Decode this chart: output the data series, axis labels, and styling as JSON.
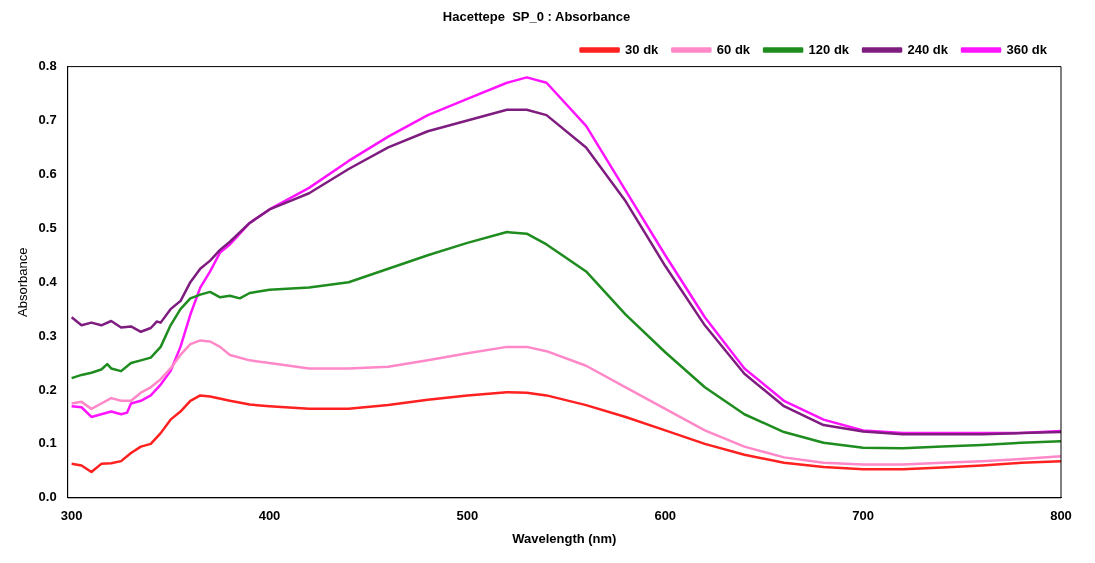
{
  "chart_data": {
    "type": "line",
    "title": "Hacettepe  SP_0 : Absorbance",
    "xlabel": "Wavelength (nm)",
    "ylabel": "Absorbance",
    "xlim": [
      298,
      800
    ],
    "xticks": [
      300,
      400,
      500,
      600,
      700,
      800
    ],
    "ylim": [
      0,
      0.8
    ],
    "yticks": [
      {
        "value": 0,
        "label": "0.0"
      },
      0.1,
      0.2,
      0.3,
      0.4,
      0.5,
      0.6,
      0.7,
      0.8
    ],
    "grid": false,
    "legend": "top right",
    "marker": "none",
    "line_style": "solid",
    "series": [
      {
        "name": "30 dk",
        "color": "#ff2020",
        "x": [
          300,
          305,
          310,
          315,
          320,
          325,
          330,
          335,
          340,
          345,
          350,
          355,
          360,
          365,
          370,
          380,
          390,
          400,
          420,
          440,
          460,
          480,
          500,
          520,
          530,
          540,
          560,
          580,
          600,
          620,
          640,
          660,
          680,
          700,
          720,
          740,
          760,
          780,
          800
        ],
        "values": [
          0.063,
          0.06,
          0.048,
          0.063,
          0.064,
          0.068,
          0.083,
          0.095,
          0.1,
          0.12,
          0.145,
          0.16,
          0.18,
          0.19,
          0.188,
          0.18,
          0.173,
          0.17,
          0.165,
          0.165,
          0.172,
          0.182,
          0.19,
          0.196,
          0.195,
          0.19,
          0.172,
          0.15,
          0.125,
          0.1,
          0.08,
          0.065,
          0.057,
          0.053,
          0.053,
          0.056,
          0.06,
          0.065,
          0.068
        ]
      },
      {
        "name": "60 dk",
        "color": "#ff88c8",
        "x": [
          300,
          305,
          310,
          315,
          320,
          325,
          330,
          335,
          340,
          345,
          350,
          355,
          360,
          365,
          370,
          375,
          380,
          390,
          400,
          420,
          440,
          460,
          480,
          500,
          520,
          530,
          540,
          560,
          580,
          600,
          620,
          640,
          660,
          680,
          700,
          720,
          740,
          760,
          780,
          800
        ],
        "values": [
          0.175,
          0.178,
          0.165,
          0.175,
          0.185,
          0.18,
          0.18,
          0.195,
          0.205,
          0.22,
          0.24,
          0.265,
          0.285,
          0.292,
          0.29,
          0.28,
          0.265,
          0.255,
          0.25,
          0.24,
          0.24,
          0.243,
          0.255,
          0.268,
          0.28,
          0.28,
          0.272,
          0.245,
          0.205,
          0.165,
          0.125,
          0.095,
          0.075,
          0.065,
          0.062,
          0.062,
          0.065,
          0.068,
          0.072,
          0.077
        ]
      },
      {
        "name": "120 dk",
        "color": "#1e8c1e",
        "x": [
          300,
          305,
          310,
          315,
          318,
          320,
          325,
          330,
          335,
          340,
          345,
          350,
          355,
          360,
          365,
          370,
          375,
          380,
          385,
          390,
          400,
          420,
          440,
          460,
          480,
          500,
          520,
          530,
          540,
          560,
          580,
          600,
          620,
          640,
          660,
          680,
          700,
          720,
          740,
          760,
          780,
          800
        ],
        "values": [
          0.222,
          0.228,
          0.232,
          0.238,
          0.248,
          0.24,
          0.235,
          0.25,
          0.255,
          0.26,
          0.28,
          0.32,
          0.35,
          0.37,
          0.377,
          0.382,
          0.372,
          0.375,
          0.37,
          0.38,
          0.386,
          0.39,
          0.4,
          0.425,
          0.45,
          0.473,
          0.493,
          0.49,
          0.47,
          0.42,
          0.34,
          0.27,
          0.205,
          0.155,
          0.122,
          0.102,
          0.093,
          0.092,
          0.095,
          0.098,
          0.102,
          0.105
        ]
      },
      {
        "name": "240 dk",
        "color": "#7f1c7f",
        "x": [
          300,
          305,
          310,
          315,
          320,
          325,
          330,
          335,
          340,
          343,
          345,
          350,
          355,
          360,
          365,
          370,
          375,
          380,
          390,
          400,
          410,
          420,
          440,
          460,
          480,
          500,
          520,
          530,
          540,
          560,
          580,
          600,
          620,
          640,
          660,
          680,
          700,
          720,
          740,
          760,
          780,
          800
        ],
        "values": [
          0.335,
          0.32,
          0.325,
          0.32,
          0.328,
          0.316,
          0.318,
          0.308,
          0.315,
          0.327,
          0.325,
          0.35,
          0.365,
          0.4,
          0.425,
          0.44,
          0.46,
          0.475,
          0.51,
          0.535,
          0.55,
          0.565,
          0.61,
          0.65,
          0.68,
          0.7,
          0.72,
          0.72,
          0.71,
          0.65,
          0.55,
          0.43,
          0.32,
          0.23,
          0.17,
          0.135,
          0.123,
          0.118,
          0.118,
          0.118,
          0.12,
          0.122
        ]
      },
      {
        "name": "360 dk",
        "color": "#ff14ff",
        "x": [
          300,
          305,
          310,
          315,
          320,
          325,
          328,
          330,
          335,
          340,
          345,
          350,
          355,
          360,
          365,
          370,
          375,
          380,
          390,
          400,
          420,
          440,
          460,
          480,
          500,
          520,
          530,
          540,
          560,
          580,
          600,
          620,
          640,
          660,
          680,
          700,
          720,
          740,
          760,
          780,
          800
        ],
        "values": [
          0.17,
          0.168,
          0.15,
          0.155,
          0.16,
          0.155,
          0.158,
          0.175,
          0.18,
          0.19,
          0.21,
          0.235,
          0.28,
          0.34,
          0.39,
          0.42,
          0.455,
          0.47,
          0.51,
          0.535,
          0.575,
          0.625,
          0.67,
          0.71,
          0.74,
          0.77,
          0.78,
          0.77,
          0.69,
          0.57,
          0.45,
          0.335,
          0.24,
          0.18,
          0.145,
          0.125,
          0.12,
          0.12,
          0.12,
          0.12,
          0.124
        ]
      }
    ]
  }
}
